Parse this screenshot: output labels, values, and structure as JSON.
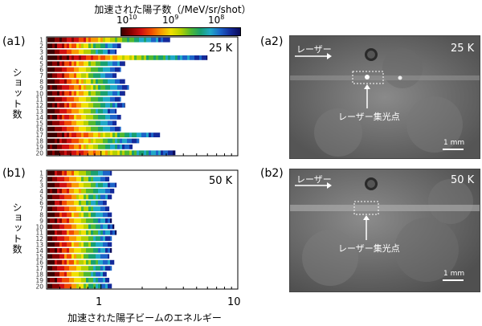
{
  "colorbar": {
    "title": "加速された陽子数（/MeV/sr/shot）",
    "ticks": [
      {
        "base": "10",
        "exp": "10",
        "value": 10000000000
      },
      {
        "base": "10",
        "exp": "9",
        "value": 1000000000
      },
      {
        "base": "10",
        "exp": "8",
        "value": 100000000
      }
    ],
    "colors": [
      "#3a0000",
      "#8a0000",
      "#d01010",
      "#f04a00",
      "#f89a00",
      "#f0e000",
      "#b4d000",
      "#50b830",
      "#18a070",
      "#20a8c8",
      "#1c64c8",
      "#142a9a",
      "#0a0a5a"
    ]
  },
  "chart_data": [
    {
      "type": "heatmap",
      "panel": "(a1)",
      "annotation": "25 K",
      "ylabel": "ショット数",
      "xlabel": "加速された陽子ビームのエネルギー",
      "xscale": "log",
      "xlim": [
        0.4,
        10
      ],
      "xticks": [
        "1",
        "10"
      ],
      "shots": [
        "1",
        "2",
        "3",
        "4",
        "5",
        "6",
        "7",
        "8",
        "9",
        "10",
        "11",
        "12",
        "13",
        "14",
        "15",
        "16",
        "17",
        "18",
        "19",
        "20"
      ],
      "max_energy_MeV": [
        3.2,
        1.4,
        1.3,
        6.0,
        1.5,
        1.4,
        1.3,
        1.5,
        1.6,
        1.5,
        1.4,
        1.5,
        1.3,
        1.4,
        1.3,
        1.4,
        2.7,
        1.9,
        1.7,
        3.5
      ]
    },
    {
      "type": "heatmap",
      "panel": "(b1)",
      "annotation": "50 K",
      "ylabel": "ショット数",
      "xlabel": "加速された陽子ビームのエネルギー",
      "xscale": "log",
      "xlim": [
        0.4,
        10
      ],
      "xticks": [
        "1",
        "10"
      ],
      "shots": [
        "1",
        "2",
        "3",
        "4",
        "5",
        "6",
        "7",
        "8",
        "9",
        "10",
        "11",
        "12",
        "13",
        "14",
        "15",
        "16",
        "17",
        "18",
        "19",
        "20"
      ],
      "max_energy_MeV": [
        1.2,
        1.15,
        1.3,
        1.25,
        1.2,
        1.1,
        1.15,
        1.2,
        1.2,
        1.25,
        1.3,
        1.2,
        1.2,
        1.2,
        1.15,
        1.25,
        1.2,
        1.1,
        1.15,
        1.2
      ]
    }
  ],
  "images": [
    {
      "panel": "(a2)",
      "temperature": "25 K",
      "laser_label": "レーザー",
      "focus_label": "レーザー集光点",
      "scale_label": "1 mm"
    },
    {
      "panel": "(b2)",
      "temperature": "50 K",
      "laser_label": "レーザー",
      "focus_label": "レーザー集光点",
      "scale_label": "1 mm"
    }
  ]
}
